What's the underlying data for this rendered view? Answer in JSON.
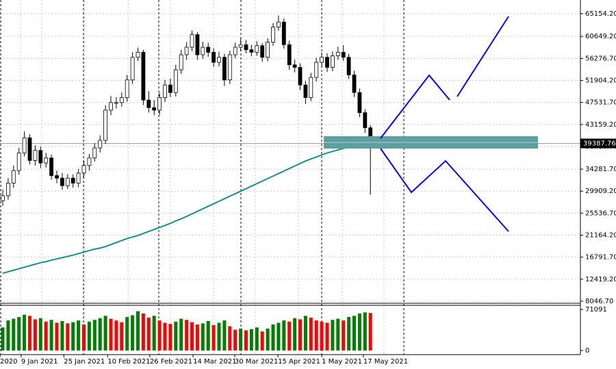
{
  "chart_data": {
    "type": "candlestick",
    "ylim": [
      7500,
      67200
    ],
    "yticks": [
      {
        "value": 65154.2,
        "label": "65154.20"
      },
      {
        "value": 60649.2,
        "label": "60649.20"
      },
      {
        "value": 56276.7,
        "label": "56276.70"
      },
      {
        "value": 51904.2,
        "label": "51904.20"
      },
      {
        "value": 47531.7,
        "label": "47531.70"
      },
      {
        "value": 43159.2,
        "label": "43159.20"
      },
      {
        "value": 38786.7,
        "label": "38786.70"
      },
      {
        "value": 34281.7,
        "label": "34281.70"
      },
      {
        "value": 29909.2,
        "label": "29909.20"
      },
      {
        "value": 25536.7,
        "label": "25536.70"
      },
      {
        "value": 21164.2,
        "label": "21164.20"
      },
      {
        "value": 16791.7,
        "label": "16791.70"
      },
      {
        "value": 12419.2,
        "label": "12419.20"
      },
      {
        "value": 8046.7,
        "label": "8046.70"
      }
    ],
    "xticks": [
      {
        "value": -0.5,
        "label": "2020"
      },
      {
        "value": 3.4,
        "label": "9 Jan 2021"
      },
      {
        "value": 11.3,
        "label": "25 Jan 2021"
      },
      {
        "value": 19.4,
        "label": "10 Feb 2021"
      },
      {
        "value": 27.2,
        "label": "26 Feb 2021"
      },
      {
        "value": 35.2,
        "label": "14 Mar 2021"
      },
      {
        "value": 42.9,
        "label": "30 Mar 2021"
      },
      {
        "value": 50.9,
        "label": "15 Apr 2021"
      },
      {
        "value": 59,
        "label": "1 May 2021"
      },
      {
        "value": 66.7,
        "label": "17 May 2021"
      }
    ],
    "grid": true,
    "last_price": 39387.76,
    "open": [
      28000,
      29000,
      31500,
      34000,
      37500,
      40500,
      36000,
      38000,
      35500,
      36500,
      33000,
      32500,
      31000,
      32500,
      31500,
      33500,
      35000,
      36500,
      38500,
      40000,
      46000,
      47500,
      47500,
      48500,
      52000,
      56500,
      57500,
      48000,
      46500,
      46000,
      48500,
      51000,
      49500,
      54000,
      57000,
      58500,
      61000,
      57000,
      58500,
      57500,
      55500,
      56500,
      52000,
      57000,
      58500,
      59000,
      58000,
      57500,
      58800,
      56500,
      59500,
      62500,
      63500,
      59000,
      55000,
      54500,
      51000,
      48500,
      52500,
      55500,
      56500,
      54500,
      56800,
      57500,
      56500,
      53000,
      49500,
      45500,
      42500
    ],
    "high": [
      30200,
      32500,
      35000,
      38500,
      41800,
      41200,
      39000,
      38800,
      37500,
      37200,
      34000,
      33500,
      33300,
      33200,
      34300,
      35900,
      37300,
      39400,
      41000,
      47000,
      48800,
      48600,
      49500,
      53000,
      57500,
      58400,
      58000,
      49800,
      48000,
      49500,
      52000,
      52300,
      55000,
      58000,
      59500,
      61800,
      61500,
      59600,
      59400,
      58300,
      57600,
      57200,
      57800,
      59400,
      60200,
      59900,
      59000,
      59700,
      59300,
      60300,
      63300,
      64800,
      64200,
      59800,
      56000,
      55300,
      51800,
      53400,
      56400,
      57500,
      57300,
      57700,
      58600,
      58900,
      57200,
      53800,
      50300,
      46200,
      43000
    ],
    "low": [
      27000,
      28200,
      30600,
      33200,
      36800,
      35200,
      35000,
      34500,
      34600,
      32200,
      31500,
      30200,
      30300,
      30600,
      30700,
      32600,
      34000,
      35800,
      37600,
      39300,
      45000,
      46300,
      46700,
      47700,
      51200,
      55800,
      47000,
      45500,
      45000,
      45000,
      47600,
      48600,
      48700,
      53200,
      56000,
      57700,
      56000,
      56200,
      56600,
      54600,
      54700,
      50800,
      51200,
      56300,
      57700,
      57300,
      56700,
      56800,
      55600,
      55700,
      58800,
      61800,
      58200,
      54000,
      53500,
      50000,
      47200,
      47800,
      51700,
      54600,
      53600,
      53700,
      56000,
      55800,
      52200,
      48600,
      44600,
      41500,
      29200
    ],
    "close": [
      29000,
      31500,
      34000,
      37500,
      40500,
      36000,
      38000,
      35500,
      36500,
      33000,
      32500,
      31000,
      32500,
      31500,
      33500,
      35000,
      36500,
      38500,
      40000,
      46000,
      47500,
      47500,
      48500,
      52000,
      56500,
      57500,
      48000,
      46500,
      46000,
      48500,
      51000,
      49500,
      54000,
      57000,
      58500,
      61000,
      57000,
      58500,
      57500,
      55500,
      56500,
      52000,
      57000,
      58500,
      59000,
      58000,
      57500,
      58800,
      56500,
      59500,
      62500,
      63500,
      59000,
      55000,
      54500,
      51000,
      48500,
      52500,
      55500,
      56500,
      54500,
      56800,
      57500,
      56500,
      53000,
      49500,
      45500,
      42500,
      39387.76
    ],
    "moving_average": {
      "color": "#1a8c8c",
      "values": [
        13600,
        13900,
        14200,
        14500,
        14800,
        15100,
        15400,
        15700,
        15900,
        16200,
        16450,
        16700,
        16950,
        17200,
        17500,
        17800,
        18100,
        18400,
        18600,
        18900,
        19300,
        19700,
        20100,
        20500,
        20800,
        21100,
        21500,
        21900,
        22300,
        22700,
        23100,
        23500,
        24000,
        24400,
        24900,
        25400,
        25900,
        26400,
        26900,
        27400,
        27900,
        28400,
        28900,
        29400,
        29900,
        30400,
        30900,
        31400,
        31900,
        32400,
        32900,
        33400,
        33900,
        34400,
        34900,
        35400,
        35900,
        36300,
        36700,
        37100,
        37500,
        37800,
        38100,
        38400,
        38650,
        38900,
        39100,
        39250,
        39400
      ]
    },
    "volume": {
      "ylim": [
        0,
        71091
      ],
      "yticks": [
        71091,
        0
      ],
      "up_color": "#008000",
      "down_color": "#ff0000",
      "values": [
        40000,
        52000,
        55000,
        58000,
        62000,
        60000,
        54000,
        56000,
        50000,
        53000,
        48000,
        51000,
        47000,
        49000,
        52000,
        45000,
        50000,
        53000,
        56000,
        60000,
        55000,
        52000,
        49000,
        58000,
        61000,
        68000,
        64000,
        57000,
        60000,
        52000,
        48000,
        46000,
        50000,
        55000,
        53000,
        49000,
        45000,
        47000,
        51000,
        44000,
        48000,
        52000,
        42000,
        36000,
        38000,
        35000,
        37000,
        40000,
        33000,
        38000,
        45000,
        48000,
        52000,
        50000,
        56000,
        54000,
        60000,
        57000,
        52000,
        50000,
        48000,
        53000,
        55000,
        52000,
        58000,
        60000,
        64000,
        66000,
        65000
      ]
    }
  }
}
